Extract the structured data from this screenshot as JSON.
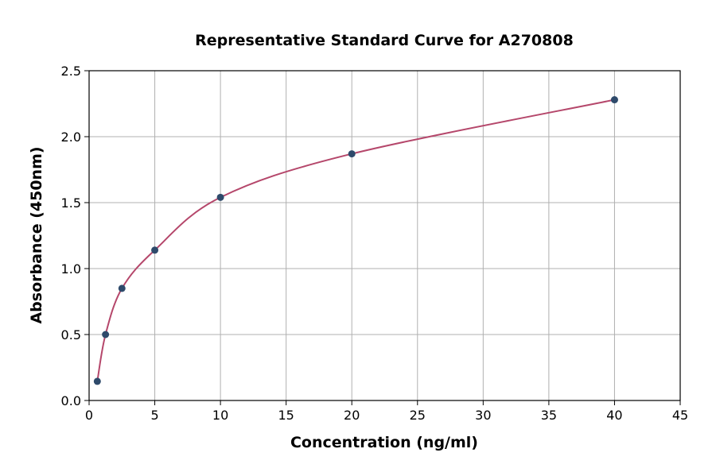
{
  "chart_data": {
    "type": "scatter",
    "title": "Representative Standard Curve for A270808",
    "xlabel": "Concentration (ng/ml)",
    "ylabel": "Absorbance (450nm)",
    "xlim": [
      0,
      45
    ],
    "ylim": [
      0,
      2.5
    ],
    "xticks": [
      "0",
      "5",
      "10",
      "15",
      "20",
      "25",
      "30",
      "35",
      "40",
      "45"
    ],
    "yticks": [
      "0.0",
      "0.5",
      "1.0",
      "1.5",
      "2.0",
      "2.5"
    ],
    "grid": true,
    "x": [
      0.625,
      1.25,
      2.5,
      5,
      10,
      20,
      40
    ],
    "y": [
      0.145,
      0.5,
      0.85,
      1.14,
      1.54,
      1.87,
      2.28
    ],
    "point_color": "#2e4a6b",
    "curve_color": "#b5476b",
    "fit_curve": true
  }
}
